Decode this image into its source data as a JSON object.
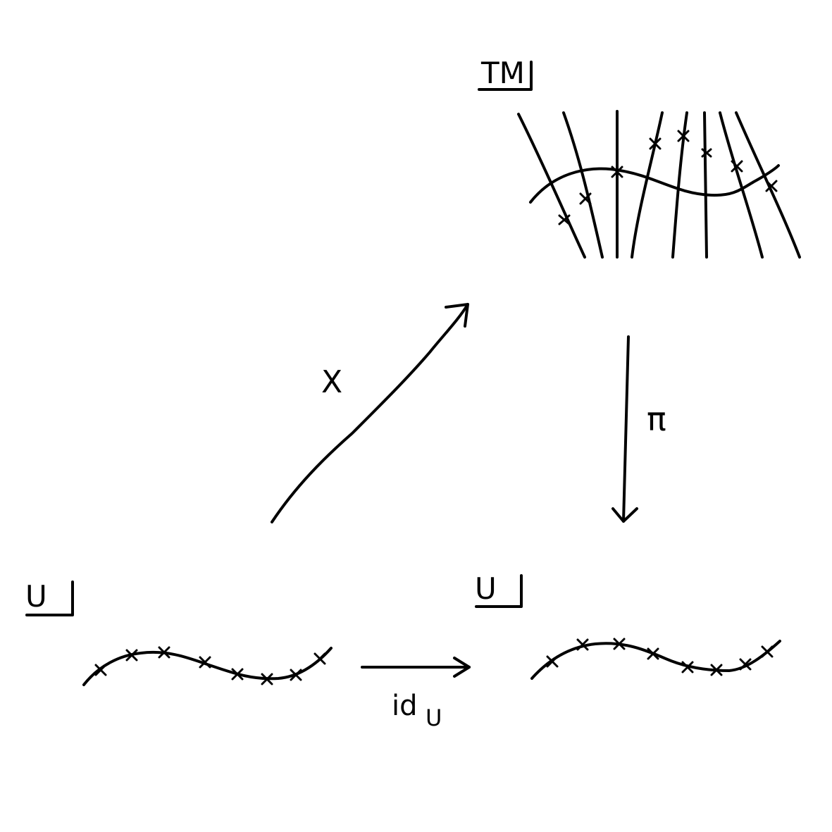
{
  "labels": {
    "tangent_bundle": "TM",
    "domain_left": "U",
    "domain_right": "U",
    "section_map": "X",
    "projection_map": "π",
    "identity_map": "id",
    "identity_subscript": "U"
  },
  "colors": {
    "ink": "#000000",
    "background": "#ffffff"
  }
}
